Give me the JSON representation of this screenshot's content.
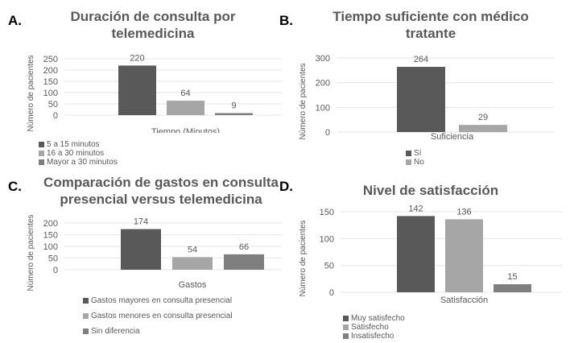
{
  "colors": {
    "dark": "#595959",
    "light": "#a6a6a6",
    "mid": "#7f7f7f",
    "grid": "#e6e6e6",
    "text": "#595959"
  },
  "panels": [
    {
      "label": "A.",
      "title_lines": [
        "Duración de consulta por",
        "telemedicina"
      ]
    },
    {
      "label": "B.",
      "title_lines": [
        "Tiempo suficiente con médico",
        "tratante"
      ]
    },
    {
      "label": "C.",
      "title_lines": [
        "Comparación de gastos en consulta",
        "presencial versus telemedicina"
      ]
    },
    {
      "label": "D.",
      "title_lines": [
        "Nivel de satisfacción"
      ]
    }
  ],
  "chart_data": [
    {
      "type": "bar",
      "title": "Duración de consulta por telemedicina",
      "xlabel": "Tiempo (Minutos)",
      "ylabel": "Número de pacientes",
      "ylim": [
        0,
        250
      ],
      "yticks": [
        0,
        50,
        100,
        150,
        200,
        250
      ],
      "grid": true,
      "legend_position": "bottom",
      "categories": [
        "Tiempo (Minutos)"
      ],
      "series": [
        {
          "name": "5 a 15 minutos",
          "values": [
            220
          ],
          "color": "#595959"
        },
        {
          "name": "16 a 30 minutos",
          "values": [
            64
          ],
          "color": "#a6a6a6"
        },
        {
          "name": "Mayor a 30 minutos",
          "values": [
            9
          ],
          "color": "#7f7f7f"
        }
      ]
    },
    {
      "type": "bar",
      "title": "Tiempo suficiente con médico tratante",
      "xlabel": "Suficiencia",
      "ylabel": "Número de pacientes",
      "ylim": [
        0,
        300
      ],
      "yticks": [
        0,
        100,
        200,
        300
      ],
      "grid": true,
      "legend_position": "bottom",
      "categories": [
        "Suficiencia"
      ],
      "series": [
        {
          "name": "Sí",
          "values": [
            264
          ],
          "color": "#595959"
        },
        {
          "name": "No",
          "values": [
            29
          ],
          "color": "#a6a6a6"
        }
      ]
    },
    {
      "type": "bar",
      "title": "Comparación de gastos en consulta presencial versus telemedicina",
      "xlabel": "Gastos",
      "ylabel": "Número de pacientes",
      "ylim": [
        0,
        200
      ],
      "yticks": [
        0,
        50,
        100,
        150,
        200
      ],
      "grid": true,
      "legend_position": "bottom",
      "categories": [
        "Gastos"
      ],
      "series": [
        {
          "name": "Gastos mayores en consulta presencial",
          "values": [
            174
          ],
          "color": "#595959"
        },
        {
          "name": "Gastos menores en consulta presencial",
          "values": [
            54
          ],
          "color": "#a6a6a6"
        },
        {
          "name": "Sin diferencia",
          "values": [
            66
          ],
          "color": "#7f7f7f"
        }
      ]
    },
    {
      "type": "bar",
      "title": "Nivel de satisfacción",
      "xlabel": "Satisfacción",
      "ylabel": "Número de pacientes",
      "ylim": [
        0,
        150
      ],
      "yticks": [
        0,
        50,
        100,
        150
      ],
      "grid": true,
      "legend_position": "bottom",
      "categories": [
        "Satisfacción"
      ],
      "series": [
        {
          "name": "Muy satisfecho",
          "values": [
            142
          ],
          "color": "#595959"
        },
        {
          "name": "Satisfecho",
          "values": [
            136
          ],
          "color": "#a6a6a6"
        },
        {
          "name": "Insatisfecho",
          "values": [
            15
          ],
          "color": "#7f7f7f"
        }
      ]
    }
  ]
}
